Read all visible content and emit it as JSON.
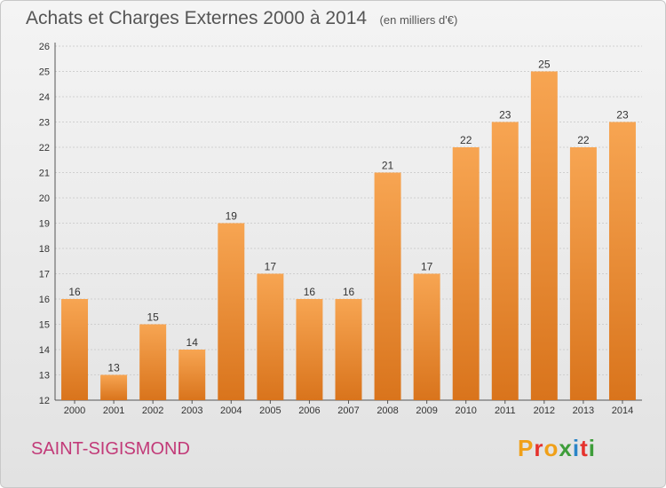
{
  "header": {
    "title": "Achats et Charges Externes 2000 à 2014",
    "unit": "(en milliers d'€)"
  },
  "footer": {
    "commune": "SAINT-SIGISMOND",
    "logo": [
      "P",
      "r",
      "o",
      "x",
      "i",
      "t",
      "i"
    ]
  },
  "colors": {
    "bar_light": "#f7a552",
    "bar_dark": "#d9741c",
    "commune": "#c23a78"
  },
  "chart_data": {
    "type": "bar",
    "title": "Achats et Charges Externes 2000 à 2014",
    "subtitle": "(en milliers d'€)",
    "xlabel": "",
    "ylabel": "",
    "categories": [
      "2000",
      "2001",
      "2002",
      "2003",
      "2004",
      "2005",
      "2006",
      "2007",
      "2008",
      "2009",
      "2010",
      "2011",
      "2012",
      "2013",
      "2014"
    ],
    "values": [
      16,
      13,
      15,
      14,
      19,
      17,
      16,
      16,
      21,
      17,
      22,
      23,
      25,
      22,
      23
    ],
    "ylim": [
      12,
      26
    ],
    "yticks": [
      12,
      13,
      14,
      15,
      16,
      17,
      18,
      19,
      20,
      21,
      22,
      23,
      24,
      25,
      26
    ],
    "grid": "horizontal",
    "data_labels": true
  }
}
